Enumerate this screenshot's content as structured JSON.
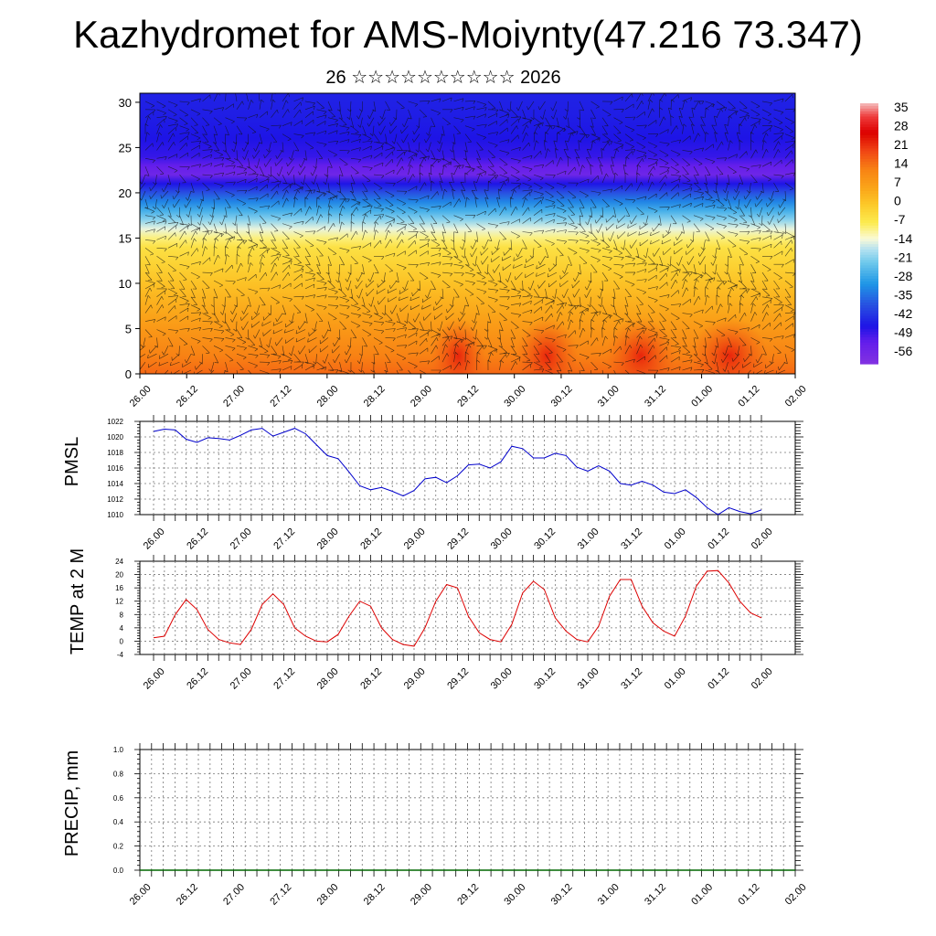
{
  "title": "Kazhydromet for AMS-Moiynty(47.216 73.347)",
  "subtitle": "26 ☆☆☆☆☆☆☆☆☆☆ 2026",
  "chart_data": [
    {
      "type": "heatmap",
      "name": "upper-air cross-section (temperature with wind barbs)",
      "x_tick_labels": [
        "26.00",
        "26.12",
        "27.00",
        "27.12",
        "28.00",
        "28.12",
        "29.00",
        "29.12",
        "30.00",
        "30.12",
        "31.00",
        "31.12",
        "01.00",
        "01.12",
        "02.00"
      ],
      "y_ticks": [
        0,
        5,
        10,
        15,
        20,
        25,
        30
      ],
      "ylim": [
        0,
        31
      ],
      "colorbar_labels": [
        "35",
        "28",
        "21",
        "14",
        "7",
        "0",
        "-7",
        "-14",
        "-21",
        "-28",
        "-35",
        "-42",
        "-49",
        "-56"
      ],
      "colorbar_range": [
        -60,
        38
      ],
      "temperature_profile": {
        "levels": [
          0,
          2,
          4,
          6,
          8,
          10,
          12,
          14,
          15,
          16,
          17,
          18,
          19,
          20,
          21,
          22,
          23,
          24,
          26,
          28,
          31
        ],
        "values": [
          16,
          13,
          10,
          7,
          4,
          1,
          -2,
          -5,
          -9,
          -14,
          -20,
          -26,
          -32,
          -38,
          -46,
          -55,
          -52,
          -48,
          -46,
          -45,
          -44
        ]
      },
      "warm_spots_x_index": [
        6.8,
        8.7,
        10.7,
        12.6
      ],
      "grid": false
    },
    {
      "type": "line",
      "ylabel": "PMSL",
      "ylim": [
        1010,
        1022
      ],
      "y_ticks": [
        1010,
        1012,
        1014,
        1016,
        1018,
        1020,
        1022
      ],
      "x_tick_labels": [
        "26.00",
        "26.12",
        "27.00",
        "27.12",
        "28.00",
        "28.12",
        "29.00",
        "29.12",
        "30.00",
        "30.12",
        "31.00",
        "31.12",
        "01.00",
        "01.12",
        "02.00"
      ],
      "x_step_hours": 3,
      "color": "#0000cc",
      "values": [
        1020.7,
        1021.0,
        1020.9,
        1019.7,
        1019.3,
        1019.9,
        1019.8,
        1019.6,
        1020.2,
        1020.9,
        1021.1,
        1020.1,
        1020.6,
        1021.1,
        1020.4,
        1019.0,
        1017.6,
        1017.2,
        1015.5,
        1013.7,
        1013.2,
        1013.5,
        1013.0,
        1012.4,
        1013.1,
        1014.6,
        1014.8,
        1014.1,
        1015.0,
        1016.4,
        1016.5,
        1016.0,
        1016.8,
        1018.8,
        1018.5,
        1017.3,
        1017.3,
        1017.9,
        1017.6,
        1016.1,
        1015.6,
        1016.3,
        1015.6,
        1014.0,
        1013.8,
        1014.3,
        1013.8,
        1012.9,
        1012.7,
        1013.2,
        1012.2,
        1010.9,
        1010.0,
        1010.9,
        1010.4,
        1010.1,
        1010.6
      ],
      "grid": "dashed"
    },
    {
      "type": "line",
      "ylabel": "TEMP at 2 M",
      "ylim": [
        -4,
        24
      ],
      "y_ticks": [
        -4,
        0,
        4,
        8,
        12,
        16,
        20,
        24
      ],
      "x_tick_labels": [
        "26.00",
        "26.12",
        "27.00",
        "27.12",
        "28.00",
        "28.12",
        "29.00",
        "29.12",
        "30.00",
        "30.12",
        "31.00",
        "31.12",
        "01.00",
        "01.12",
        "02.00"
      ],
      "x_step_hours": 3,
      "color": "#dd0000",
      "values": [
        1.0,
        1.5,
        8.0,
        12.5,
        9.5,
        3.5,
        0.5,
        -0.5,
        -1.0,
        3.5,
        11.0,
        14.2,
        11.0,
        4.0,
        1.5,
        0.0,
        -0.2,
        2.0,
        7.5,
        12.0,
        10.5,
        4.0,
        0.5,
        -1.0,
        -1.5,
        4.0,
        12.0,
        17.0,
        16.0,
        7.5,
        2.5,
        0.5,
        -0.2,
        5.0,
        14.5,
        18.0,
        15.5,
        7.0,
        3.0,
        0.5,
        -0.2,
        4.5,
        13.5,
        18.5,
        18.5,
        10.5,
        5.5,
        3.0,
        1.5,
        7.5,
        16.5,
        21.0,
        21.2,
        17.5,
        12.0,
        8.5,
        7.0
      ],
      "grid": "dashed"
    },
    {
      "type": "line",
      "ylabel": "PRECIP, mm",
      "ylim": [
        0,
        1
      ],
      "y_ticks": [
        0.0,
        0.2,
        0.4,
        0.6,
        0.8,
        1.0
      ],
      "y_tick_labels": [
        "0.0",
        "0.2",
        "0.4",
        "0.6",
        "0.8",
        "1.0"
      ],
      "x_tick_labels": [
        "26.00",
        "26.12",
        "27.00",
        "27.12",
        "28.00",
        "28.12",
        "29.00",
        "29.12",
        "30.00",
        "30.12",
        "31.00",
        "31.12",
        "01.00",
        "01.12",
        "02.00"
      ],
      "color": "#006600",
      "values": [
        0,
        0
      ],
      "grid": "dashed"
    }
  ]
}
